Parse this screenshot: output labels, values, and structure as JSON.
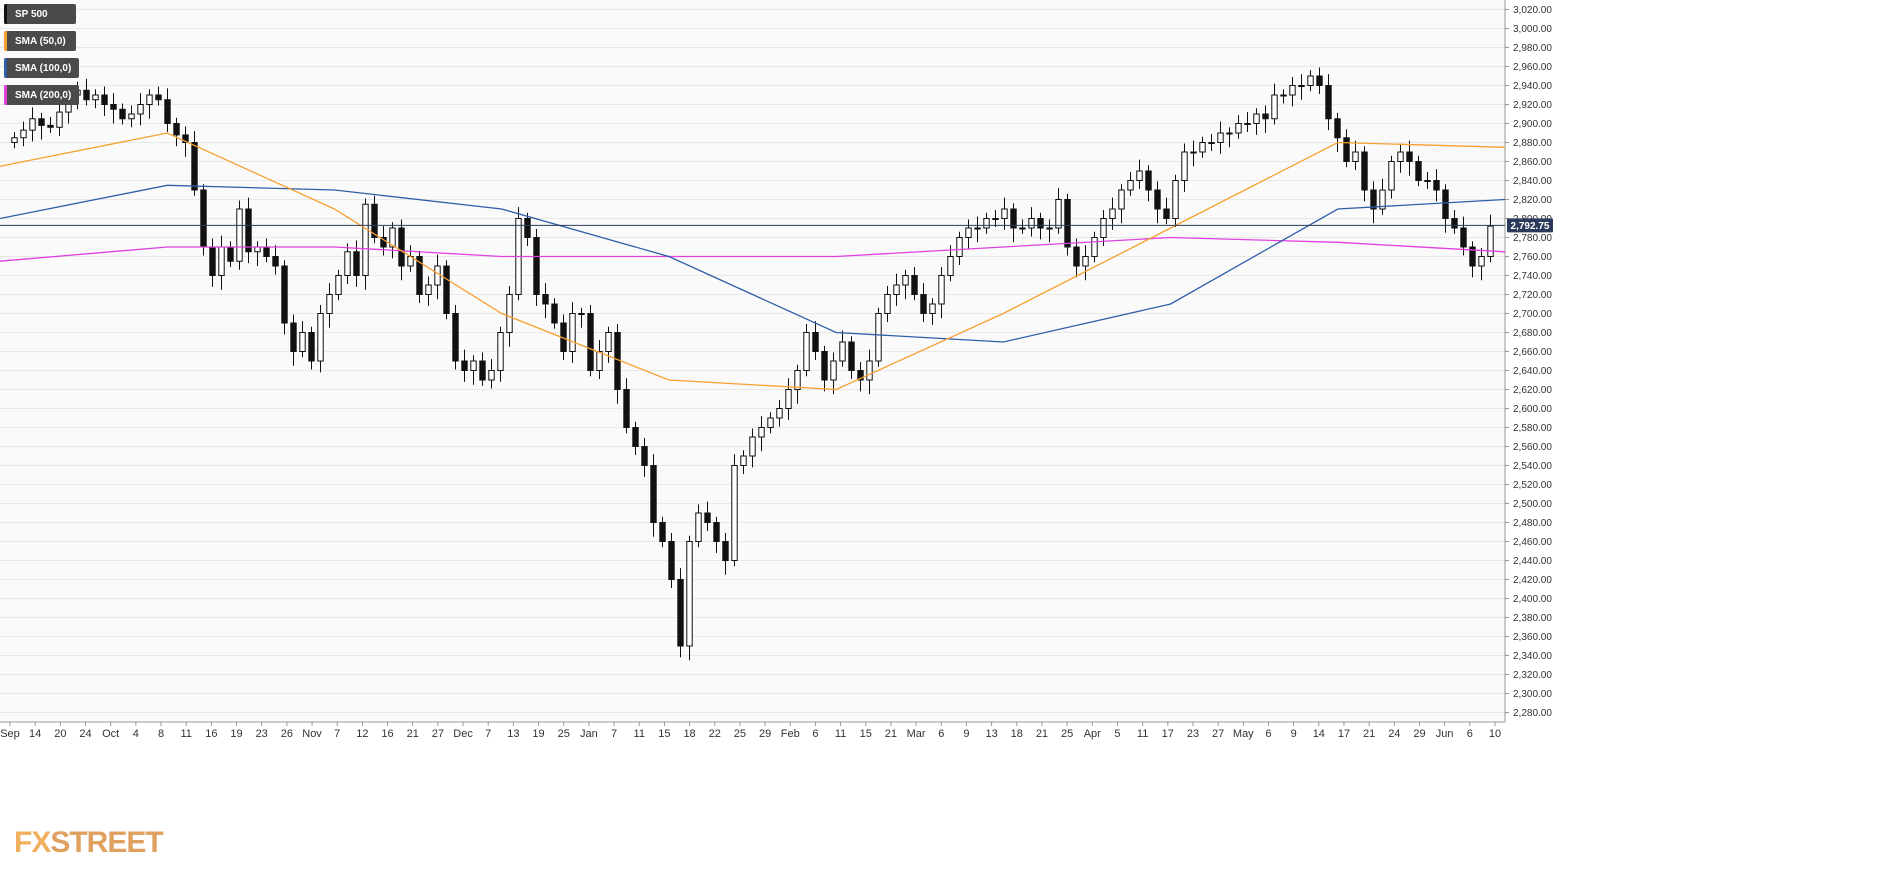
{
  "legend": [
    {
      "label": "SP 500",
      "color": "#111111"
    },
    {
      "label": "SMA (50,0)",
      "color": "#f7a030"
    },
    {
      "label": "SMA (100,0)",
      "color": "#2f5fa8"
    },
    {
      "label": "SMA (200,0)",
      "color": "#e040e0"
    }
  ],
  "price_tag": "2,792.75",
  "logo": {
    "fx": "FX",
    "street": "STREET"
  },
  "chart_data": {
    "type": "candlestick",
    "title": "",
    "xlabel": "",
    "ylabel": "",
    "ylim": [
      2270,
      3030
    ],
    "y_ticks": [
      "2,280.00",
      "2,300.00",
      "2,320.00",
      "2,340.00",
      "2,360.00",
      "2,380.00",
      "2,400.00",
      "2,420.00",
      "2,440.00",
      "2,460.00",
      "2,480.00",
      "2,500.00",
      "2,520.00",
      "2,540.00",
      "2,560.00",
      "2,580.00",
      "2,600.00",
      "2,620.00",
      "2,640.00",
      "2,660.00",
      "2,680.00",
      "2,700.00",
      "2,720.00",
      "2,740.00",
      "2,760.00",
      "2,780.00",
      "2,800.00",
      "2,820.00",
      "2,840.00",
      "2,860.00",
      "2,880.00",
      "2,900.00",
      "2,920.00",
      "2,940.00",
      "2,960.00",
      "2,980.00",
      "3,000.00",
      "3,020.00"
    ],
    "x_tick_labels": [
      "Sep",
      "14",
      "20",
      "24",
      "Oct",
      "4",
      "8",
      "11",
      "16",
      "19",
      "23",
      "26",
      "Nov",
      "7",
      "12",
      "16",
      "21",
      "27",
      "Dec",
      "7",
      "13",
      "19",
      "25",
      "Jan",
      "7",
      "11",
      "15",
      "18",
      "22",
      "25",
      "29",
      "Feb",
      "6",
      "11",
      "15",
      "21",
      "Mar",
      "6",
      "9",
      "13",
      "18",
      "21",
      "25",
      "Apr",
      "5",
      "11",
      "17",
      "23",
      "27",
      "May",
      "6",
      "9",
      "14",
      "17",
      "21",
      "24",
      "29",
      "Jun",
      "6",
      "10"
    ],
    "last_price": 2792.75,
    "candle_closes": [
      2885,
      2893,
      2905,
      2898,
      2896,
      2912,
      2930,
      2935,
      2925,
      2930,
      2920,
      2915,
      2905,
      2910,
      2920,
      2930,
      2925,
      2900,
      2888,
      2880,
      2830,
      2770,
      2740,
      2770,
      2755,
      2810,
      2765,
      2770,
      2760,
      2750,
      2690,
      2660,
      2680,
      2650,
      2700,
      2720,
      2740,
      2765,
      2740,
      2815,
      2780,
      2770,
      2790,
      2750,
      2760,
      2720,
      2730,
      2750,
      2700,
      2650,
      2640,
      2650,
      2630,
      2640,
      2680,
      2720,
      2800,
      2780,
      2720,
      2710,
      2690,
      2660,
      2700,
      2700,
      2640,
      2660,
      2680,
      2620,
      2580,
      2560,
      2540,
      2480,
      2460,
      2420,
      2350,
      2460,
      2490,
      2480,
      2460,
      2440,
      2540,
      2550,
      2570,
      2580,
      2590,
      2600,
      2620,
      2640,
      2680,
      2660,
      2630,
      2650,
      2670,
      2640,
      2630,
      2650,
      2700,
      2720,
      2730,
      2740,
      2720,
      2700,
      2710,
      2740,
      2760,
      2780,
      2790,
      2790,
      2800,
      2800,
      2810,
      2790,
      2790,
      2800,
      2790,
      2790,
      2820,
      2770,
      2750,
      2760,
      2780,
      2800,
      2810,
      2830,
      2840,
      2850,
      2830,
      2810,
      2800,
      2840,
      2870,
      2870,
      2880,
      2880,
      2890,
      2890,
      2900,
      2900,
      2910,
      2905,
      2930,
      2930,
      2940,
      2940,
      2950,
      2940,
      2905,
      2885,
      2860,
      2870,
      2830,
      2810,
      2830,
      2860,
      2870,
      2860,
      2840,
      2840,
      2830,
      2800,
      2790,
      2770,
      2750,
      2760,
      2792
    ],
    "sma_50": [
      2855,
      2890,
      2810,
      2700,
      2630,
      2620,
      2700,
      2790,
      2880,
      2875
    ],
    "sma_100": [
      2800,
      2835,
      2830,
      2810,
      2760,
      2680,
      2670,
      2710,
      2810,
      2820
    ],
    "sma_200": [
      2755,
      2770,
      2770,
      2760,
      2760,
      2760,
      2770,
      2780,
      2775,
      2765
    ]
  }
}
